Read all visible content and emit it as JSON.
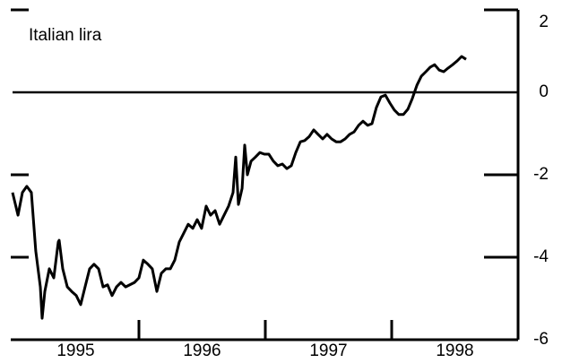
{
  "chart_data": {
    "type": "line",
    "annotation": "Italian lira",
    "x": [
      1995.0,
      1995.043,
      1995.078,
      1995.113,
      1995.149,
      1995.184,
      1995.22,
      1995.234,
      1995.255,
      1995.291,
      1995.326,
      1995.362,
      1995.369,
      1995.397,
      1995.433,
      1995.468,
      1995.504,
      1995.539,
      1995.574,
      1995.61,
      1995.645,
      1995.681,
      1995.716,
      1995.752,
      1995.787,
      1995.823,
      1995.858,
      1995.894,
      1995.965,
      1996.0,
      1996.035,
      1996.071,
      1996.106,
      1996.142,
      1996.177,
      1996.213,
      1996.248,
      1996.284,
      1996.319,
      1996.355,
      1996.39,
      1996.426,
      1996.461,
      1996.496,
      1996.532,
      1996.567,
      1996.603,
      1996.638,
      1996.674,
      1996.709,
      1996.745,
      1996.766,
      1996.787,
      1996.816,
      1996.837,
      1996.858,
      1996.887,
      1996.922,
      1996.957,
      1996.993,
      1997.028,
      1997.064,
      1997.099,
      1997.135,
      1997.17,
      1997.206,
      1997.241,
      1997.277,
      1997.312,
      1997.348,
      1997.383,
      1997.418,
      1997.454,
      1997.489,
      1997.525,
      1997.56,
      1997.596,
      1997.631,
      1997.667,
      1997.702,
      1997.738,
      1997.773,
      1997.809,
      1997.844,
      1997.879,
      1997.915,
      1997.95,
      1997.986,
      1998.021,
      1998.057,
      1998.092,
      1998.128,
      1998.163,
      1998.199,
      1998.234,
      1998.27,
      1998.305,
      1998.34,
      1998.376,
      1998.411,
      1998.447,
      1998.482,
      1998.518,
      1998.553,
      1998.589
    ],
    "series": [
      {
        "name": "Italian lira",
        "color": "#000000",
        "values": [
          -2.43,
          -2.98,
          -2.43,
          -2.28,
          -2.43,
          -3.85,
          -4.72,
          -5.48,
          -4.83,
          -4.28,
          -4.5,
          -3.63,
          -3.59,
          -4.28,
          -4.72,
          -4.83,
          -4.93,
          -5.15,
          -4.72,
          -4.28,
          -4.17,
          -4.28,
          -4.72,
          -4.67,
          -4.93,
          -4.72,
          -4.61,
          -4.72,
          -4.61,
          -4.5,
          -4.07,
          -4.17,
          -4.28,
          -4.83,
          -4.39,
          -4.28,
          -4.28,
          -4.07,
          -3.63,
          -3.41,
          -3.2,
          -3.3,
          -3.09,
          -3.3,
          -2.76,
          -2.98,
          -2.87,
          -3.2,
          -2.98,
          -2.76,
          -2.43,
          -1.57,
          -2.72,
          -2.33,
          -1.28,
          -2.0,
          -1.67,
          -1.57,
          -1.46,
          -1.5,
          -1.5,
          -1.67,
          -1.78,
          -1.74,
          -1.85,
          -1.78,
          -1.46,
          -1.2,
          -1.17,
          -1.07,
          -0.91,
          -1.02,
          -1.13,
          -1.02,
          -1.13,
          -1.2,
          -1.2,
          -1.13,
          -1.02,
          -0.96,
          -0.8,
          -0.7,
          -0.8,
          -0.76,
          -0.37,
          -0.11,
          -0.07,
          -0.26,
          -0.43,
          -0.54,
          -0.54,
          -0.41,
          -0.15,
          0.17,
          0.39,
          0.5,
          0.61,
          0.67,
          0.54,
          0.5,
          0.59,
          0.67,
          0.76,
          0.87,
          0.8
        ]
      }
    ],
    "xlim": [
      1995,
      1999
    ],
    "xticks": [
      {
        "value": 1995.5,
        "label": "1995"
      },
      {
        "value": 1996.5,
        "label": "1996"
      },
      {
        "value": 1997.5,
        "label": "1997"
      },
      {
        "value": 1998.5,
        "label": "1998"
      }
    ],
    "xtick_marks": [
      1996,
      1997,
      1998
    ],
    "ylim": [
      -6,
      2
    ],
    "yticks": [
      2,
      0,
      -2,
      -4,
      -6
    ]
  }
}
